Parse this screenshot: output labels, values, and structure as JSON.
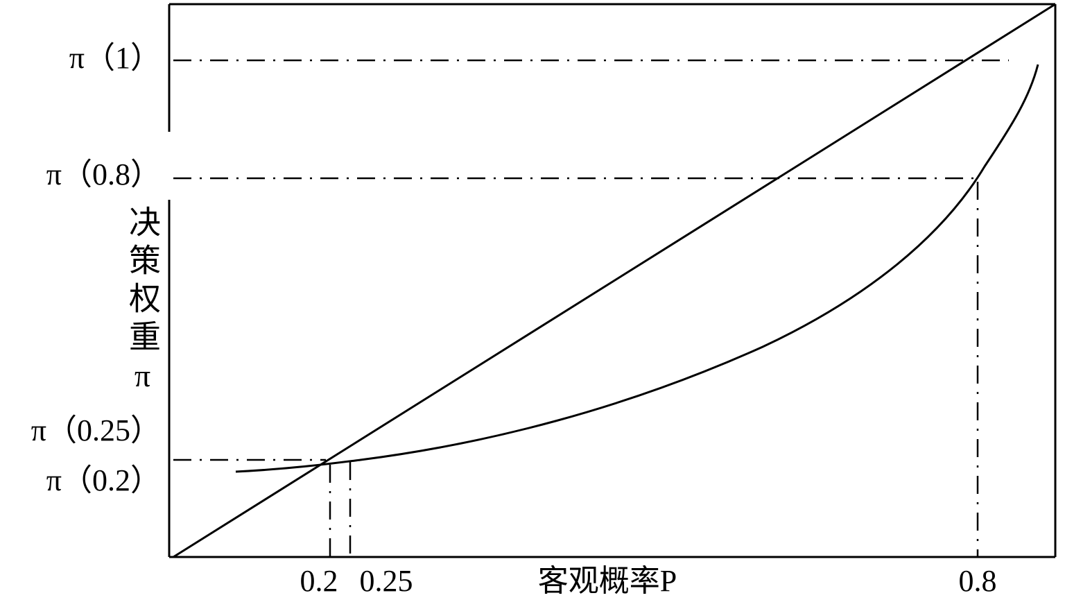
{
  "y_labels": [
    "π（1）",
    "π（0.8）",
    "π（0.25）",
    "π（0.2）"
  ],
  "y_axis_title": "决策权重π",
  "x_labels": [
    "0.2",
    "0.25",
    "0.8"
  ],
  "x_axis_title": "客观概率P"
}
